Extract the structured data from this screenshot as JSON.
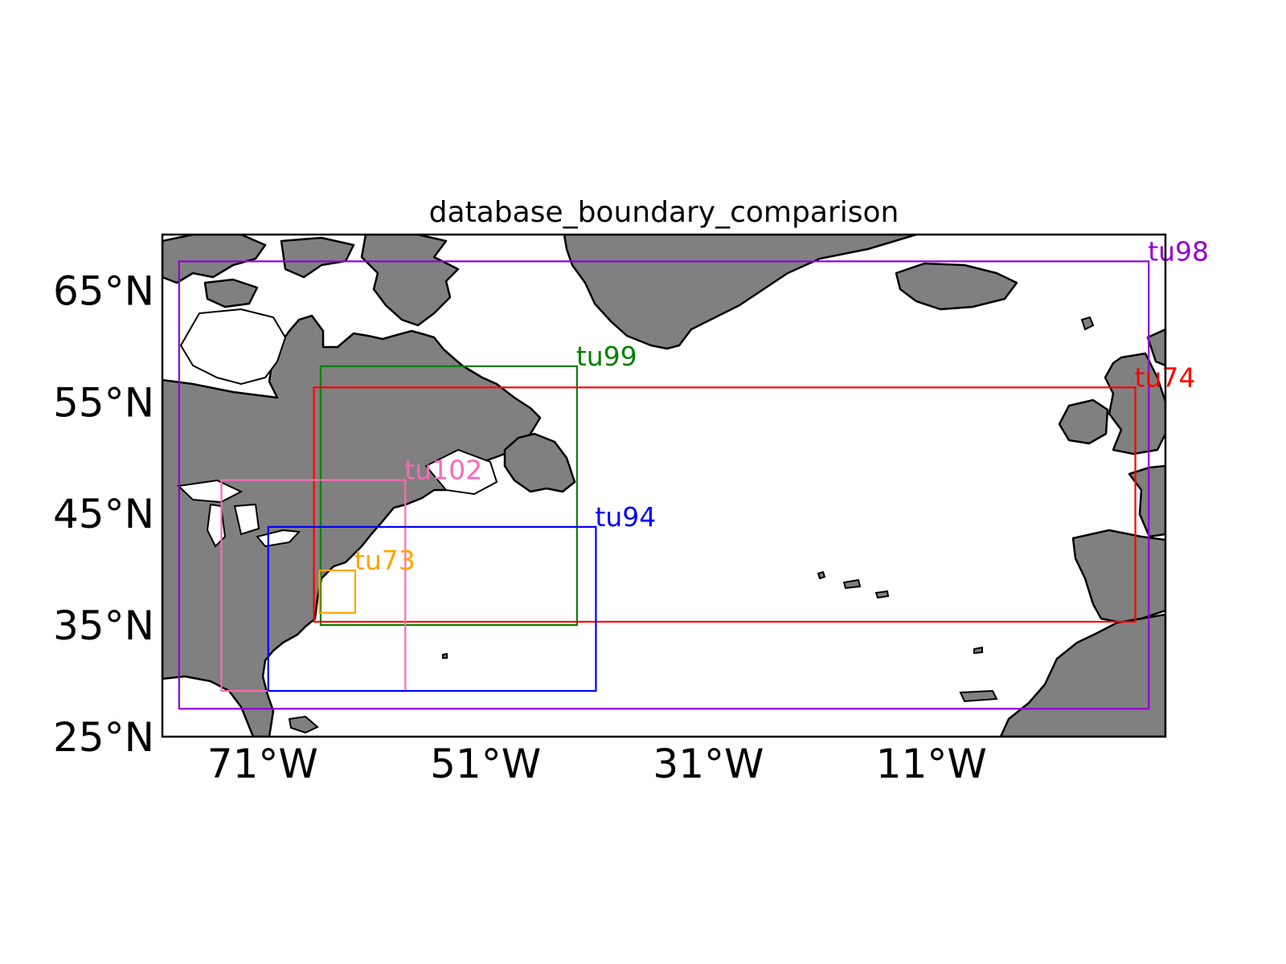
{
  "map": {
    "title": "database_boundary_comparison",
    "extent": {
      "lon": [
        -80,
        10
      ],
      "lat": [
        25,
        70
      ]
    },
    "x_ticks": [
      {
        "lon": -71,
        "label": "71°W"
      },
      {
        "lon": -51,
        "label": "51°W"
      },
      {
        "lon": -31,
        "label": "31°W"
      },
      {
        "lon": -11,
        "label": "11°W"
      }
    ],
    "y_ticks": [
      {
        "lat": 65,
        "label": "65°N"
      },
      {
        "lat": 55,
        "label": "55°N"
      },
      {
        "lat": 45,
        "label": "45°N"
      },
      {
        "lat": 35,
        "label": "35°N"
      },
      {
        "lat": 25,
        "label": "25°N"
      }
    ],
    "colors": {
      "land": "#808080",
      "ocean": "#ffffff",
      "coastline": "#000000"
    },
    "boxes": [
      {
        "name": "tu98",
        "color": "#9400d3",
        "lon_min": -78.5,
        "lon_max": 8.5,
        "lat_min": 27.5,
        "lat_max": 67.6
      },
      {
        "name": "tu99",
        "color": "#008000",
        "lon_min": -65.8,
        "lon_max": -42.8,
        "lat_min": 35.0,
        "lat_max": 58.2
      },
      {
        "name": "tu74",
        "color": "#ff0000",
        "lon_min": -66.4,
        "lon_max": 7.3,
        "lat_min": 35.3,
        "lat_max": 56.3
      },
      {
        "name": "tu102",
        "color": "#ff69b4",
        "lon_min": -74.7,
        "lon_max": -58.2,
        "lat_min": 29.1,
        "lat_max": 48.0
      },
      {
        "name": "tu94",
        "color": "#0000ff",
        "lon_min": -70.5,
        "lon_max": -41.1,
        "lat_min": 29.1,
        "lat_max": 43.8
      },
      {
        "name": "tu73",
        "color": "#ffa500",
        "lon_min": -65.9,
        "lon_max": -62.7,
        "lat_min": 36.1,
        "lat_max": 39.9
      }
    ]
  }
}
